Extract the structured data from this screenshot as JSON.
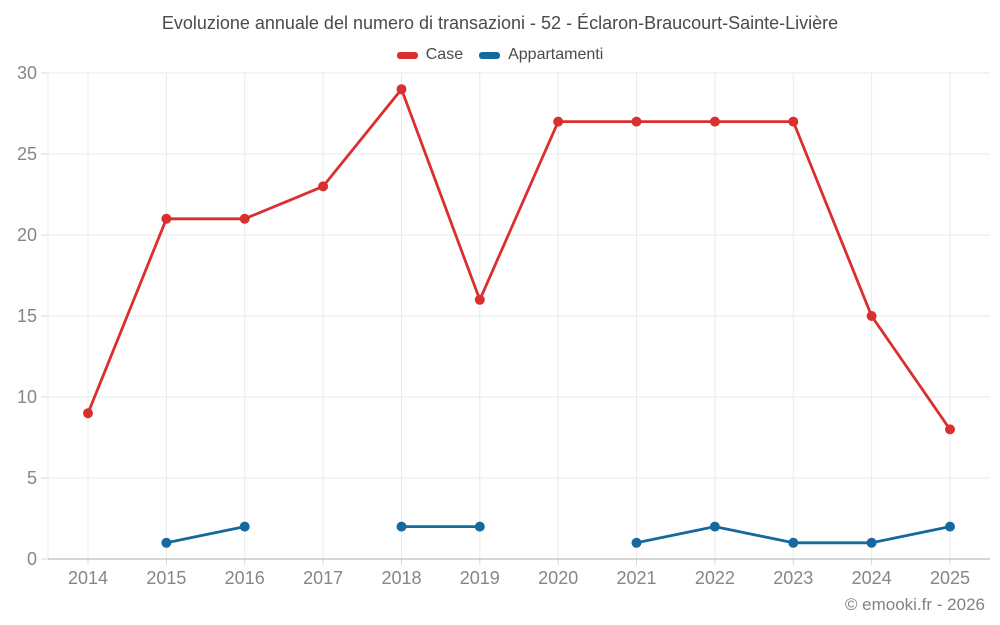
{
  "header": {
    "title": "Evoluzione annuale del numero di transazioni - 52 - Éclaron-Braucourt-Sainte-Livière"
  },
  "legend": {
    "items": [
      {
        "label": "Case",
        "color": "#da2f2f"
      },
      {
        "label": "Appartamenti",
        "color": "#15699e"
      }
    ]
  },
  "footer": {
    "copyright": "© emooki.fr - 2026"
  },
  "colors": {
    "background": "#ffffff",
    "grid": "#eaeaea",
    "axis_line": "#c8c8c8",
    "tick": "#d9d9d9",
    "axis_label": "#868686",
    "title_text": "#4a4a4a",
    "footer_text": "#828282",
    "case_red": "#da2f2f",
    "apartments_blue": "#15699e"
  },
  "chart_data": {
    "type": "line",
    "title": "Evoluzione annuale del numero di transazioni - 52 - Éclaron-Braucourt-Sainte-Livière",
    "xlabel": "",
    "ylabel": "",
    "categories": [
      "2014",
      "2015",
      "2016",
      "2017",
      "2018",
      "2019",
      "2020",
      "2021",
      "2022",
      "2023",
      "2024",
      "2025"
    ],
    "series": [
      {
        "name": "Case",
        "color": "#da2f2f",
        "values": [
          9,
          21,
          21,
          23,
          29,
          16,
          27,
          27,
          27,
          27,
          15,
          8
        ]
      },
      {
        "name": "Appartamenti",
        "color": "#15699e",
        "values": [
          null,
          1,
          2,
          null,
          2,
          2,
          null,
          1,
          2,
          1,
          1,
          2
        ]
      }
    ],
    "ylim": [
      0,
      30
    ],
    "ytick_step": 5,
    "grid": true,
    "point_markers": true,
    "legend_position": "top"
  }
}
